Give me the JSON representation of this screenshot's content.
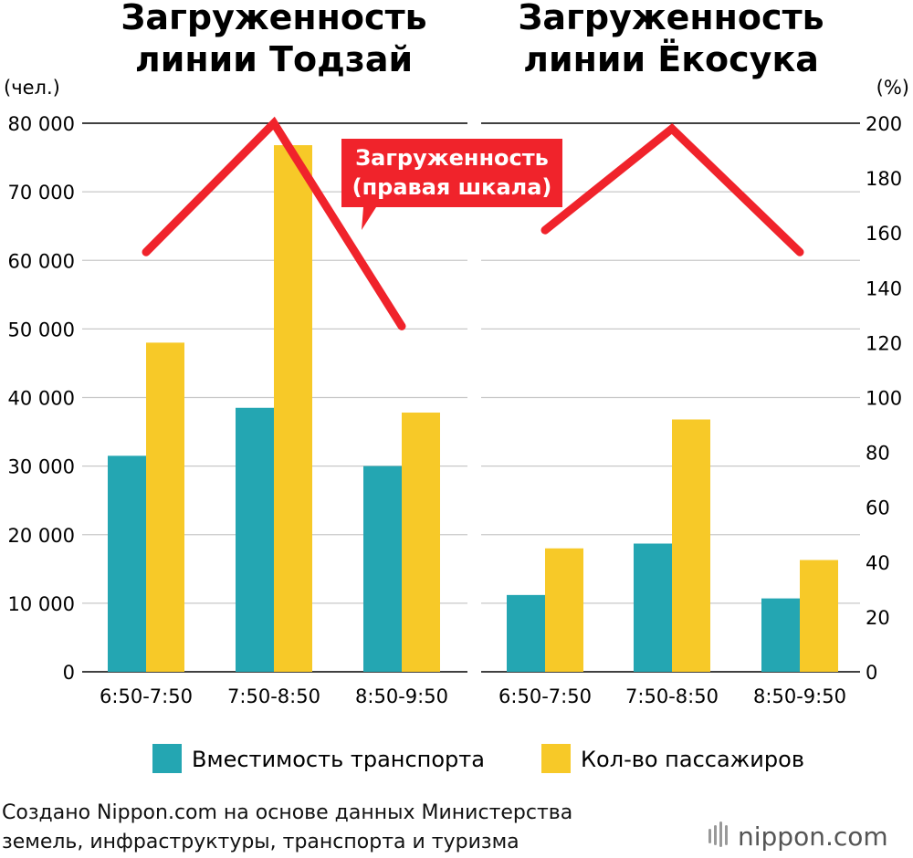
{
  "chart_data": [
    {
      "type": "bar",
      "title_lines": [
        "Загруженность",
        "линии Тодзай"
      ],
      "categories": [
        "6:50-7:50",
        "7:50-8:50",
        "8:50-9:50"
      ],
      "series": [
        {
          "name": "Вместимость транспорта",
          "values": [
            31500,
            38500,
            30000
          ],
          "color": "#24a6b2"
        },
        {
          "name": "Кол-во пассажиров",
          "values": [
            48000,
            76800,
            37800
          ],
          "color": "#f7c928"
        }
      ],
      "line_series": {
        "name": "Загруженность",
        "values": [
          153,
          200,
          126
        ],
        "axis": "right",
        "color": "#f0232b"
      },
      "ylim_left": [
        0,
        80000
      ],
      "ylim_right": [
        0,
        200
      ]
    },
    {
      "type": "bar",
      "title_lines": [
        "Загруженность",
        "линии Ёкосука"
      ],
      "categories": [
        "6:50-7:50",
        "7:50-8:50",
        "8:50-9:50"
      ],
      "series": [
        {
          "name": "Вместимость транспорта",
          "values": [
            11200,
            18700,
            10700
          ],
          "color": "#24a6b2"
        },
        {
          "name": "Кол-во пассажиров",
          "values": [
            18000,
            36800,
            16300
          ],
          "color": "#f7c928"
        }
      ],
      "line_series": {
        "name": "Загруженность",
        "values": [
          161,
          198,
          153
        ],
        "axis": "right",
        "color": "#f0232b"
      },
      "ylim_left": [
        0,
        80000
      ],
      "ylim_right": [
        0,
        200
      ]
    }
  ],
  "left_axis": {
    "unit": "(чел.)",
    "ticks": [
      "0",
      "10 000",
      "20 000",
      "30 000",
      "40 000",
      "50 000",
      "60 000",
      "70 000",
      "80 000"
    ]
  },
  "right_axis": {
    "unit": "(%)",
    "ticks": [
      "0",
      "20",
      "40",
      "60",
      "80",
      "100",
      "120",
      "140",
      "160",
      "180",
      "200"
    ]
  },
  "callout": {
    "lines": [
      "Загруженность",
      "(правая шкала)"
    ],
    "color": "#f0232b"
  },
  "legend": [
    {
      "label": "Вместимость транспорта",
      "color": "#24a6b2"
    },
    {
      "label": "Кол-во пассажиров",
      "color": "#f7c928"
    }
  ],
  "source_lines": [
    "Создано Nippon.com на основе данных Министерства",
    "земель, инфраструктуры, транспорта и туризма"
  ],
  "logo": {
    "text": "nippon.com"
  }
}
